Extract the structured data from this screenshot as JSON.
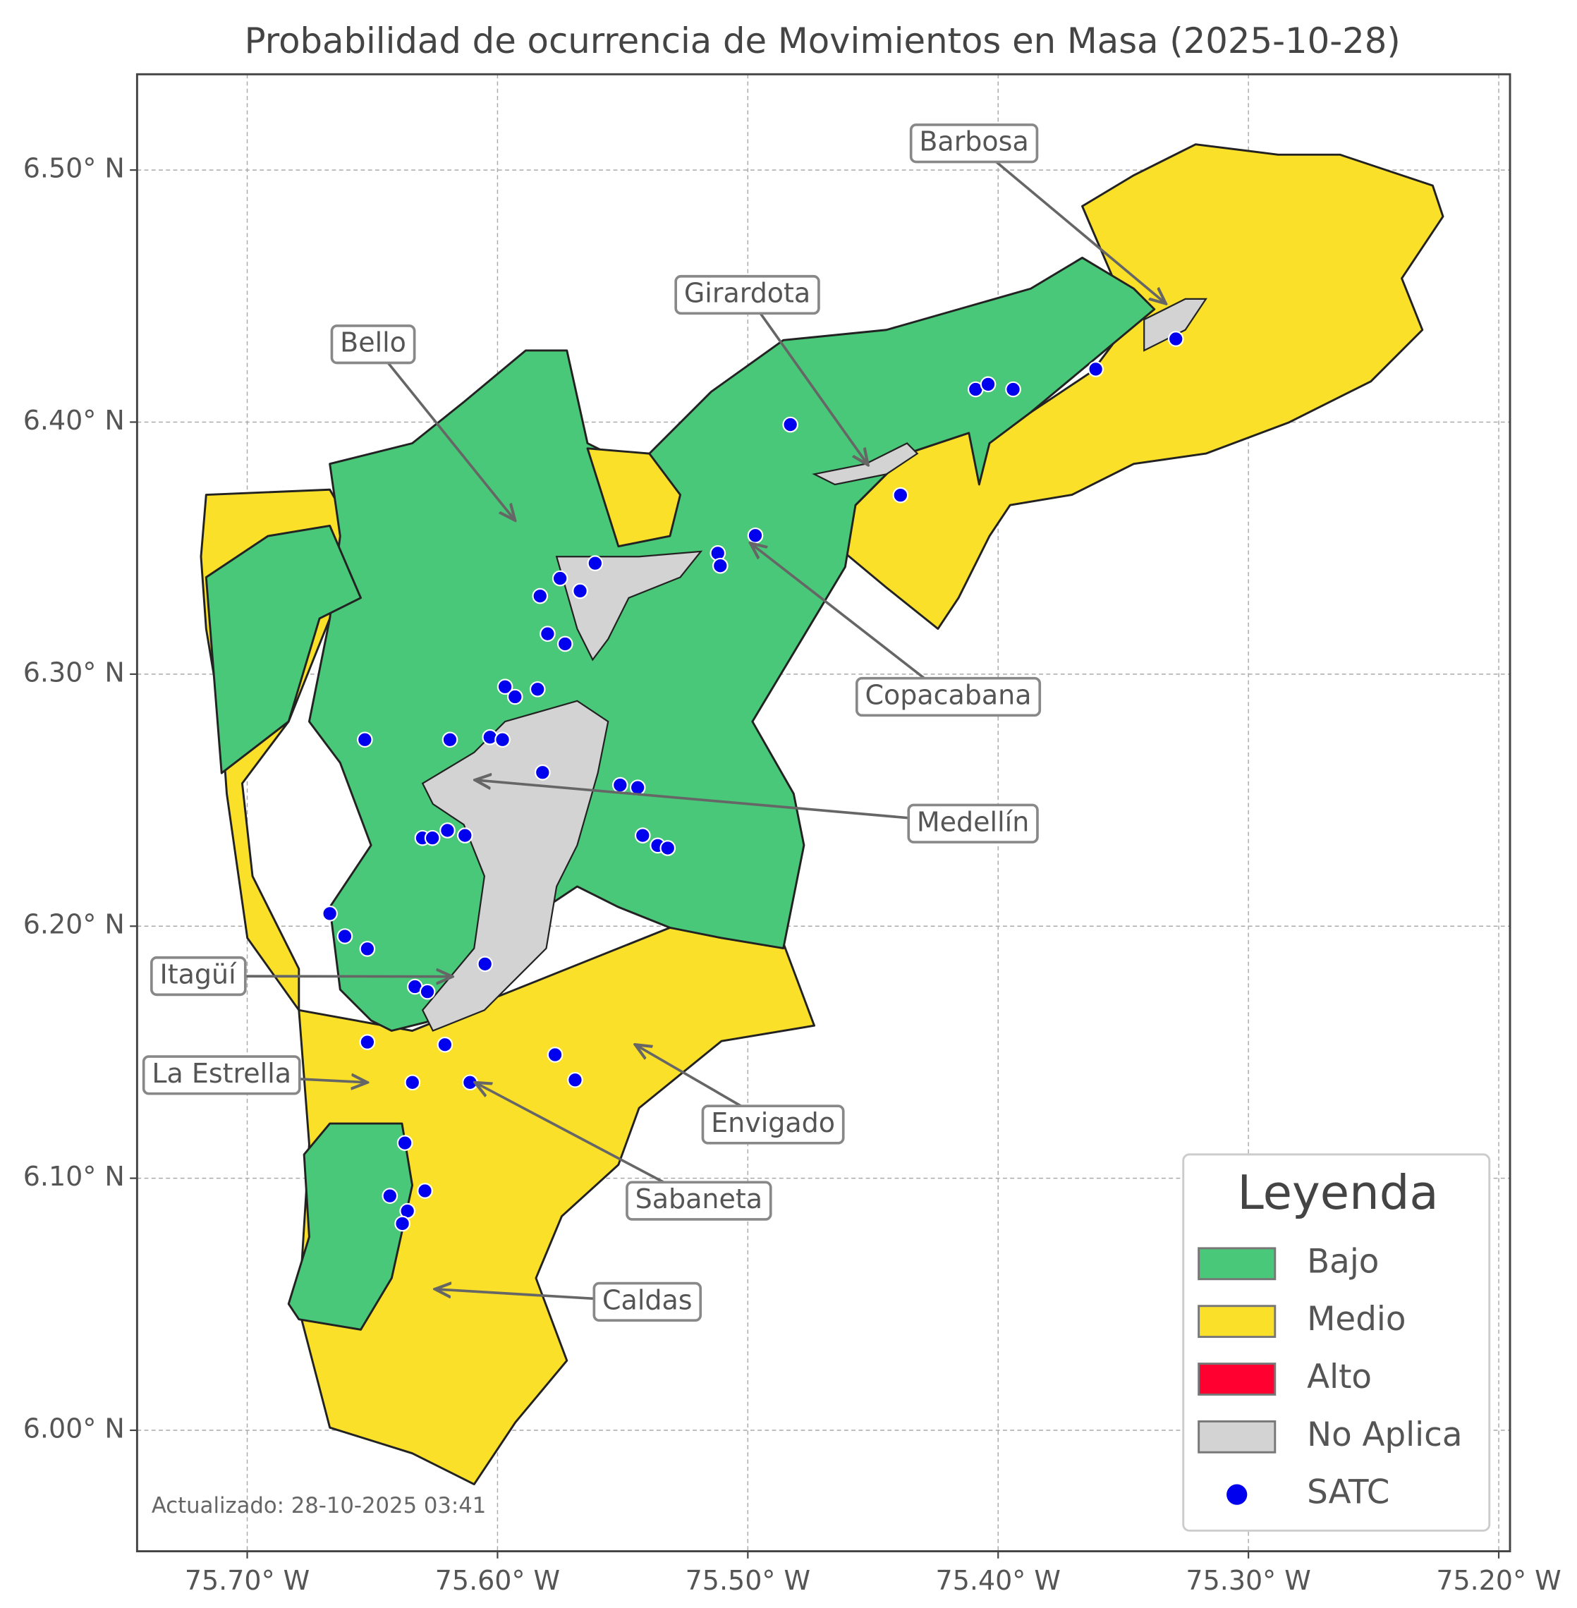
{
  "chart_data": {
    "type": "scatter",
    "title": "Probabilidad de ocurrencia de Movimientos en Masa (2025-10-28)",
    "footnote": "Actualizado: 28-10-2025 03:41",
    "xlim": [
      -75.744,
      -75.1955
    ],
    "ylim": [
      5.952,
      6.538
    ],
    "xticks": [
      {
        "value": -75.7,
        "label": "75.70° W"
      },
      {
        "value": -75.6,
        "label": "75.60° W"
      },
      {
        "value": -75.5,
        "label": "75.50° W"
      },
      {
        "value": -75.4,
        "label": "75.40° W"
      },
      {
        "value": -75.3,
        "label": "75.30° W"
      },
      {
        "value": -75.2,
        "label": "75.20° W"
      }
    ],
    "yticks": [
      {
        "value": 6.0,
        "label": "6.00° N"
      },
      {
        "value": 6.1,
        "label": "6.10° N"
      },
      {
        "value": 6.2,
        "label": "6.20° N"
      },
      {
        "value": 6.3,
        "label": "6.30° N"
      },
      {
        "value": 6.4,
        "label": "6.40° N"
      },
      {
        "value": 6.5,
        "label": "6.50° N"
      }
    ],
    "grid": true,
    "series": [
      {
        "name": "SATC",
        "color": "#0000ee",
        "x": [
          -75.483,
          -75.409,
          -75.404,
          -75.394,
          -75.361,
          -75.329,
          -75.439,
          -75.497,
          -75.512,
          -75.511,
          -75.561,
          -75.575,
          -75.583,
          -75.567,
          -75.58,
          -75.573,
          -75.597,
          -75.593,
          -75.584,
          -75.619,
          -75.653,
          -75.603,
          -75.598,
          -75.582,
          -75.551,
          -75.544,
          -75.542,
          -75.536,
          -75.532,
          -75.62,
          -75.63,
          -75.626,
          -75.613,
          -75.667,
          -75.661,
          -75.652,
          -75.605,
          -75.633,
          -75.628,
          -75.652,
          -75.621,
          -75.577,
          -75.569,
          -75.634,
          -75.611,
          -75.637,
          -75.643,
          -75.629,
          -75.636,
          -75.638
        ],
        "y": [
          6.399,
          6.413,
          6.415,
          6.413,
          6.421,
          6.433,
          6.371,
          6.355,
          6.348,
          6.343,
          6.344,
          6.338,
          6.331,
          6.333,
          6.316,
          6.312,
          6.295,
          6.291,
          6.294,
          6.274,
          6.274,
          6.275,
          6.274,
          6.261,
          6.256,
          6.255,
          6.236,
          6.232,
          6.231,
          6.238,
          6.235,
          6.235,
          6.236,
          6.205,
          6.196,
          6.191,
          6.185,
          6.176,
          6.174,
          6.154,
          6.153,
          6.149,
          6.139,
          6.138,
          6.138,
          6.114,
          6.093,
          6.095,
          6.087,
          6.082
        ]
      }
    ],
    "annotations": [
      {
        "text": "Barbosa",
        "x": -75.333,
        "y": 6.447
      },
      {
        "text": "Girardota",
        "x": -75.452,
        "y": 6.383
      },
      {
        "text": "Bello",
        "x": -75.593,
        "y": 6.361
      },
      {
        "text": "Copacabana",
        "x": -75.499,
        "y": 6.352
      },
      {
        "text": "Medellín",
        "x": -75.609,
        "y": 6.258
      },
      {
        "text": "Itagüí",
        "x": -75.618,
        "y": 6.18
      },
      {
        "text": "La Estrella",
        "x": -75.652,
        "y": 6.138
      },
      {
        "text": "Sabaneta",
        "x": -75.609,
        "y": 6.138
      },
      {
        "text": "Envigado",
        "x": -75.545,
        "y": 6.153
      },
      {
        "text": "Caldas",
        "x": -75.625,
        "y": 6.056
      }
    ],
    "legend": {
      "title": "Leyenda",
      "items": [
        {
          "name": "Bajo",
          "color": "#48c878"
        },
        {
          "name": "Medio",
          "color": "#fbe02a"
        },
        {
          "name": "Alto",
          "color": "#ff0030"
        },
        {
          "name": "No Aplica",
          "color": "#d3d3d3"
        }
      ]
    }
  }
}
